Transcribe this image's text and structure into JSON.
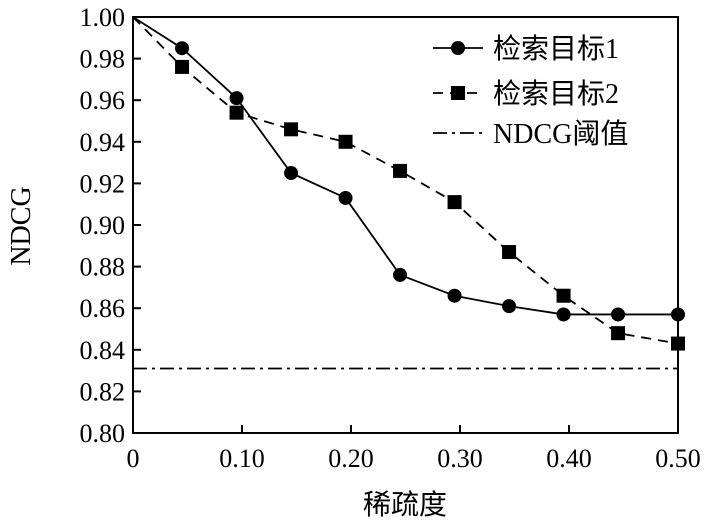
{
  "chart_data": {
    "type": "line",
    "title": "",
    "xlabel": "稀疏度",
    "ylabel": "NDCG",
    "xlim": [
      0,
      0.5
    ],
    "ylim": [
      0.8,
      1.0
    ],
    "grid": false,
    "legend_position": "top-right",
    "x_ticks": [
      {
        "value": 0,
        "label": "0"
      },
      {
        "value": 0.1,
        "label": "0.10"
      },
      {
        "value": 0.2,
        "label": "0.20"
      },
      {
        "value": 0.3,
        "label": "0.30"
      },
      {
        "value": 0.4,
        "label": "0.40"
      },
      {
        "value": 0.5,
        "label": "0.50"
      }
    ],
    "y_ticks": [
      {
        "value": 0.8,
        "label": "0.80"
      },
      {
        "value": 0.82,
        "label": "0.82"
      },
      {
        "value": 0.84,
        "label": "0.84"
      },
      {
        "value": 0.86,
        "label": "0.86"
      },
      {
        "value": 0.88,
        "label": "0.88"
      },
      {
        "value": 0.9,
        "label": "0.90"
      },
      {
        "value": 0.92,
        "label": "0.92"
      },
      {
        "value": 0.94,
        "label": "0.94"
      },
      {
        "value": 0.96,
        "label": "0.96"
      },
      {
        "value": 0.98,
        "label": "0.98"
      },
      {
        "value": 1.0,
        "label": "1.00"
      }
    ],
    "series": [
      {
        "name": "检索目标1",
        "marker": "circle",
        "line_style": "solid",
        "color": "#000000",
        "x": [
          0,
          0.045,
          0.095,
          0.145,
          0.195,
          0.245,
          0.295,
          0.345,
          0.395,
          0.445,
          0.5
        ],
        "y": [
          1.0,
          0.985,
          0.961,
          0.925,
          0.913,
          0.876,
          0.866,
          0.861,
          0.857,
          0.857,
          0.857
        ],
        "draw_markers_from_index": 1
      },
      {
        "name": "检索目标2",
        "marker": "square",
        "line_style": "dashed",
        "color": "#000000",
        "x": [
          0,
          0.045,
          0.095,
          0.145,
          0.195,
          0.245,
          0.295,
          0.345,
          0.395,
          0.445,
          0.5
        ],
        "y": [
          1.0,
          0.976,
          0.954,
          0.946,
          0.94,
          0.926,
          0.911,
          0.887,
          0.866,
          0.848,
          0.843
        ],
        "draw_markers_from_index": 1
      },
      {
        "name": "NDCG阈值",
        "marker": "none",
        "line_style": "dashdot",
        "color": "#000000",
        "x": [
          0,
          0.5
        ],
        "y": [
          0.831,
          0.831
        ]
      }
    ]
  }
}
